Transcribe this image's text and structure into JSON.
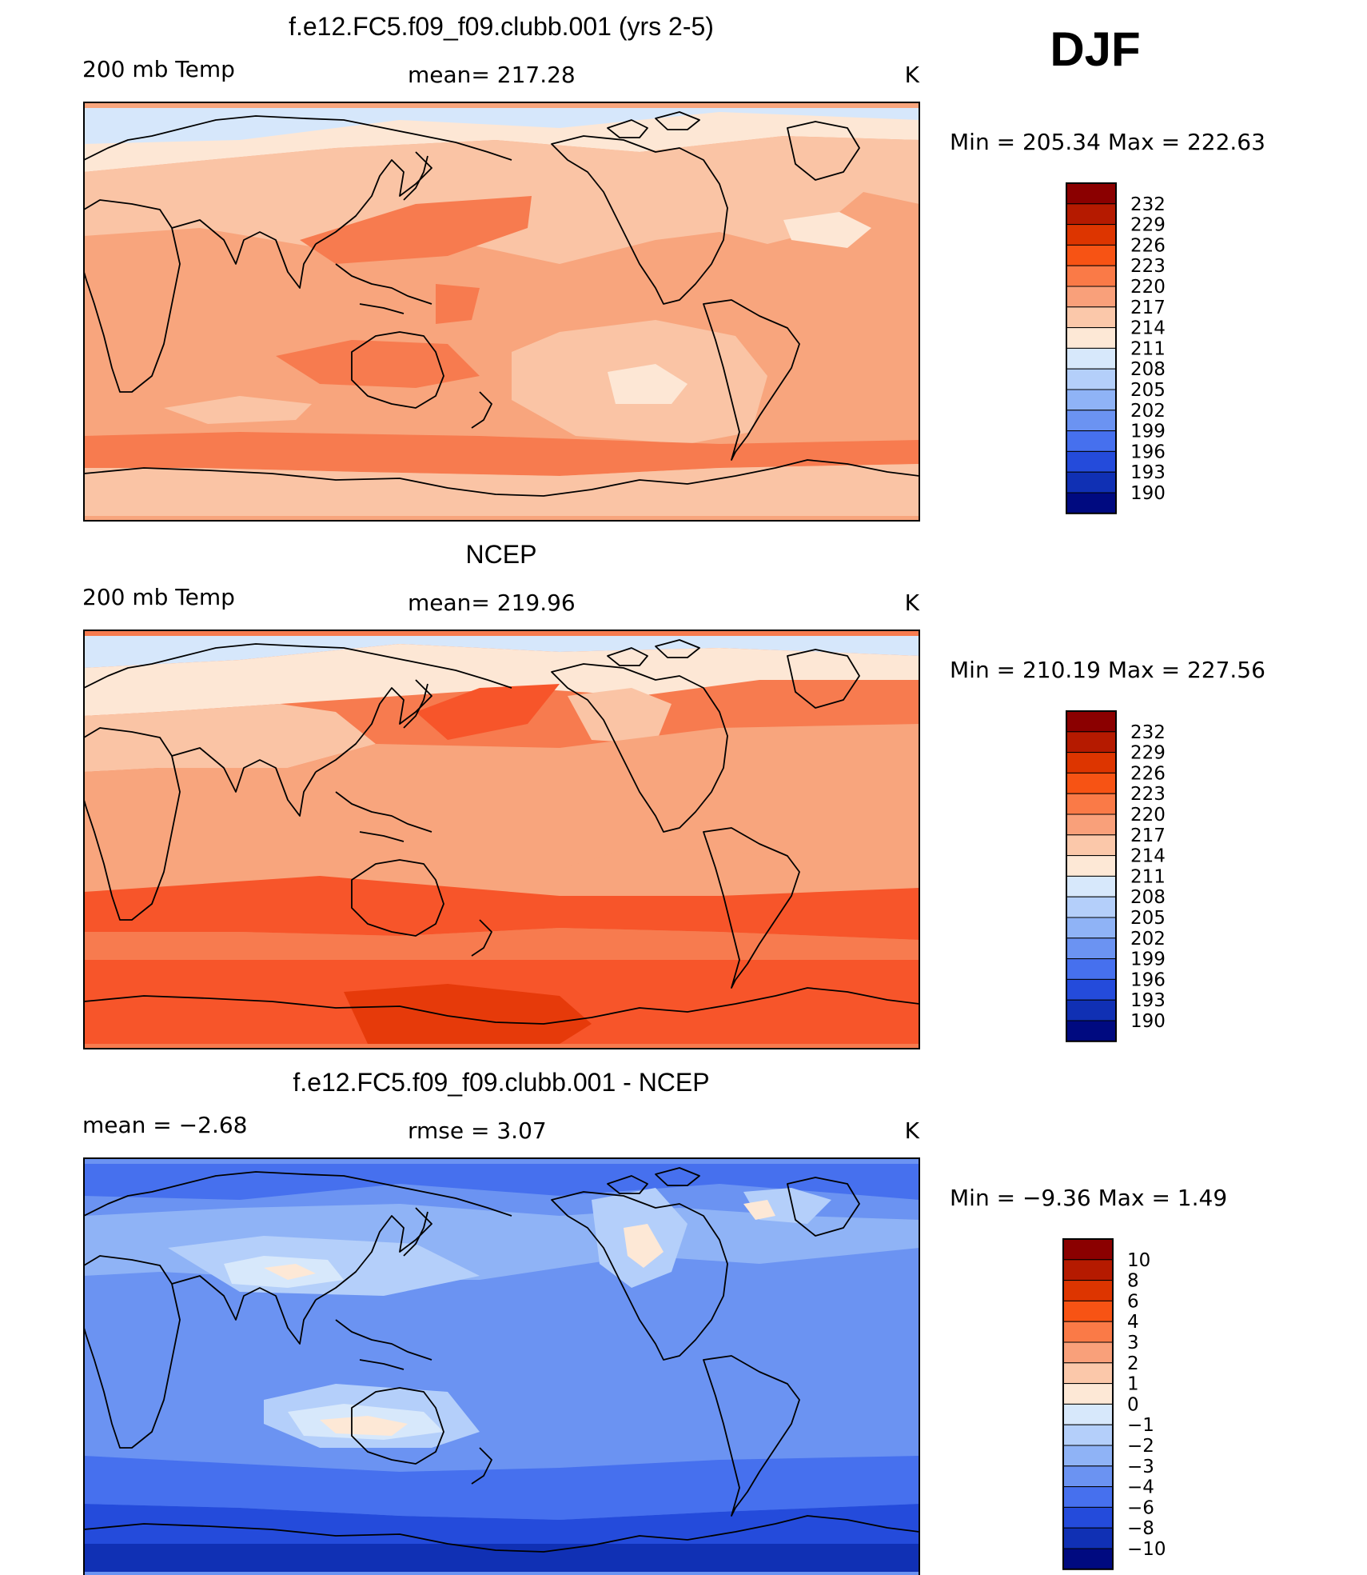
{
  "season": "DJF",
  "chart_data": [
    {
      "type": "heatmap",
      "title": "f.e12.FC5.f09_f09.clubb.001 (yrs 2-5)",
      "variable_label": "200 mb Temp",
      "stat_text": "mean=  217.28",
      "units": "K",
      "range_text": "Min  =  205.34  Max  =  222.63",
      "colorbar_levels": [
        "232",
        "229",
        "226",
        "223",
        "220",
        "217",
        "214",
        "211",
        "208",
        "205",
        "202",
        "199",
        "196",
        "193",
        "190"
      ],
      "colorbar_colors": [
        "#8b0000",
        "#b51a00",
        "#dd3500",
        "#f75314",
        "#fa7a47",
        "#f9a07a",
        "#fbc8aa",
        "#fde8d6",
        "#d7e8fb",
        "#b4cffa",
        "#8fb3f6",
        "#6b93f2",
        "#4670ee",
        "#244bdb",
        "#1030b4",
        "#000a80"
      ],
      "field_colors": [
        "#f8a57d",
        "#fac4a5",
        "#f77b4f",
        "#fde7d5",
        "#d6e7fb",
        "#b3cdfa"
      ]
    },
    {
      "type": "heatmap",
      "title": "NCEP",
      "variable_label": "200 mb Temp",
      "stat_text": "mean=  219.96",
      "units": "K",
      "range_text": "Min  =  210.19  Max  =  227.56",
      "colorbar_levels": [
        "232",
        "229",
        "226",
        "223",
        "220",
        "217",
        "214",
        "211",
        "208",
        "205",
        "202",
        "199",
        "196",
        "193",
        "190"
      ],
      "colorbar_colors": [
        "#8b0000",
        "#b51a00",
        "#dd3500",
        "#f75314",
        "#fa7a47",
        "#f9a07a",
        "#fbc8aa",
        "#fde8d6",
        "#d7e8fb",
        "#b4cffa",
        "#8fb3f6",
        "#6b93f2",
        "#4670ee",
        "#244bdb",
        "#1030b4",
        "#000a80"
      ],
      "field_colors": [
        "#f77b4f",
        "#f8a57d",
        "#f7552a",
        "#fac4a5",
        "#fde7d5",
        "#d6e7fb",
        "#e63a0a"
      ]
    },
    {
      "type": "heatmap",
      "title": "f.e12.FC5.f09_f09.clubb.001 - NCEP",
      "variable_label": "mean  =     −2.68",
      "stat_text": "rmse  =      3.07",
      "units": "K",
      "range_text": "Min  =     −9.36  Max  =       1.49",
      "colorbar_levels": [
        "10",
        "8",
        "6",
        "4",
        "3",
        "2",
        "1",
        "0",
        "−1",
        "−2",
        "−3",
        "−4",
        "−6",
        "−8",
        "−10"
      ],
      "colorbar_colors": [
        "#8b0000",
        "#b51a00",
        "#dd3500",
        "#f75314",
        "#fa7a47",
        "#f9a07a",
        "#fbc8aa",
        "#fde8d6",
        "#d7e8fb",
        "#b4cffa",
        "#8fb3f6",
        "#6b93f2",
        "#4670ee",
        "#244bdb",
        "#1030b4",
        "#000a80"
      ],
      "field_colors": [
        "#6b93f2",
        "#8fb3f6",
        "#4670ee",
        "#b4cffa",
        "#d7e8fb",
        "#fde8d6",
        "#244bdb",
        "#1030b4"
      ]
    }
  ]
}
